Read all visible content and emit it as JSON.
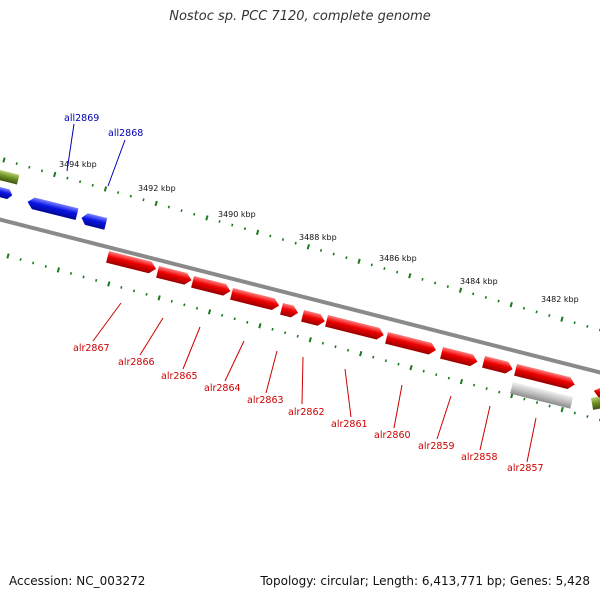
{
  "title": "Nostoc sp. PCC 7120, complete genome",
  "footer": {
    "accession": "Accession: NC_003272",
    "summary": "Topology: circular; Length: 6,413,771 bp; Genes: 5,428"
  },
  "colors": {
    "backbone": "#808080",
    "tick": "#1a7a1a",
    "reverse_gene": "#0a14e6",
    "forward_gene": "#ee0000",
    "other_gene": "#b8b8b8",
    "olive_feature": "#6b8e23",
    "reverse_label": "#0000bb",
    "forward_label": "#cc0000",
    "tick_label": "#111111"
  },
  "scale_labels": [
    "3494 kbp",
    "3492 kbp",
    "3490 kbp",
    "3488 kbp",
    "3486 kbp",
    "3484 kbp",
    "3482 kbp"
  ],
  "reverse_genes": [
    {
      "label": "all2869"
    },
    {
      "label": "all2868"
    }
  ],
  "forward_genes": [
    {
      "label": "alr2867"
    },
    {
      "label": "alr2866"
    },
    {
      "label": "alr2865"
    },
    {
      "label": "alr2864"
    },
    {
      "label": "alr2863"
    },
    {
      "label": "alr2862"
    },
    {
      "label": "alr2861"
    },
    {
      "label": "alr2860"
    },
    {
      "label": "alr2859"
    },
    {
      "label": "alr2858"
    },
    {
      "label": "alr2857"
    }
  ]
}
